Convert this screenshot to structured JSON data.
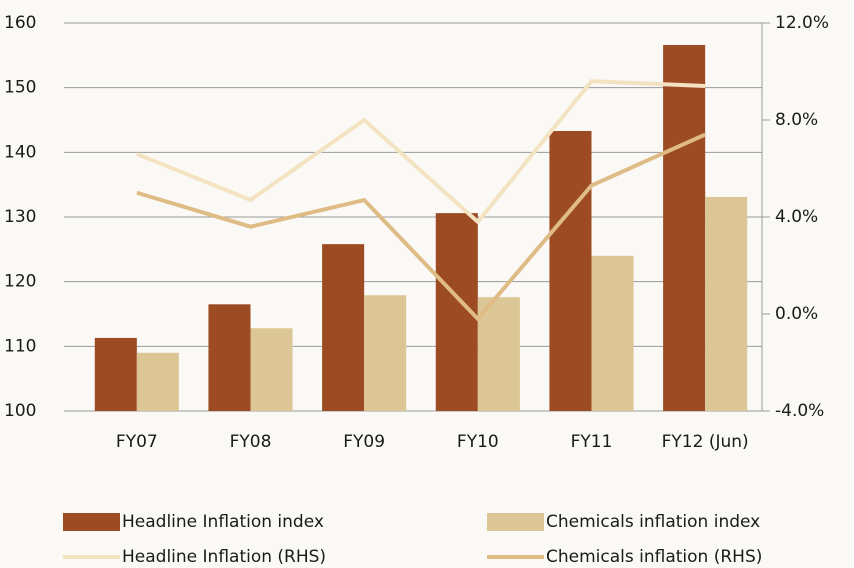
{
  "chart_data": {
    "type": "bar_line",
    "categories": [
      "FY07",
      "FY08",
      "FY09",
      "FY10",
      "FY11",
      "FY12 (Jun)"
    ],
    "series": [
      {
        "name": "Headline Inflation index",
        "type": "bar",
        "color": "#9d4b23",
        "values": [
          111.3,
          116.5,
          125.8,
          130.6,
          143.3,
          156.6
        ]
      },
      {
        "name": "Chemicals inflation index",
        "type": "bar",
        "color": "#ddc696",
        "values": [
          109.0,
          112.8,
          117.9,
          117.6,
          124.0,
          133.1
        ]
      },
      {
        "name": "Headline Inflation (RHS)",
        "type": "line",
        "axis": "y2",
        "color": "#f4e3c1",
        "values": [
          6.6,
          4.7,
          8.0,
          3.8,
          9.6,
          9.4
        ]
      },
      {
        "name": "Chemicals inflation (RHS)",
        "type": "line",
        "axis": "y2",
        "color": "#dfbb85",
        "values": [
          5.0,
          3.6,
          4.7,
          -0.2,
          5.3,
          7.4
        ]
      }
    ],
    "ylim": [
      100,
      160
    ],
    "yticks": [
      100,
      110,
      120,
      130,
      140,
      150,
      160
    ],
    "y2lim": [
      -4,
      12
    ],
    "y2ticks": [
      {
        "value": -4,
        "label": "-4.0%"
      },
      {
        "value": 0,
        "label": "0.0%"
      },
      {
        "value": 4,
        "label": "4.0%"
      },
      {
        "value": 8,
        "label": "8.0%"
      },
      {
        "value": 12,
        "label": "12.0%"
      }
    ],
    "grid": true
  }
}
